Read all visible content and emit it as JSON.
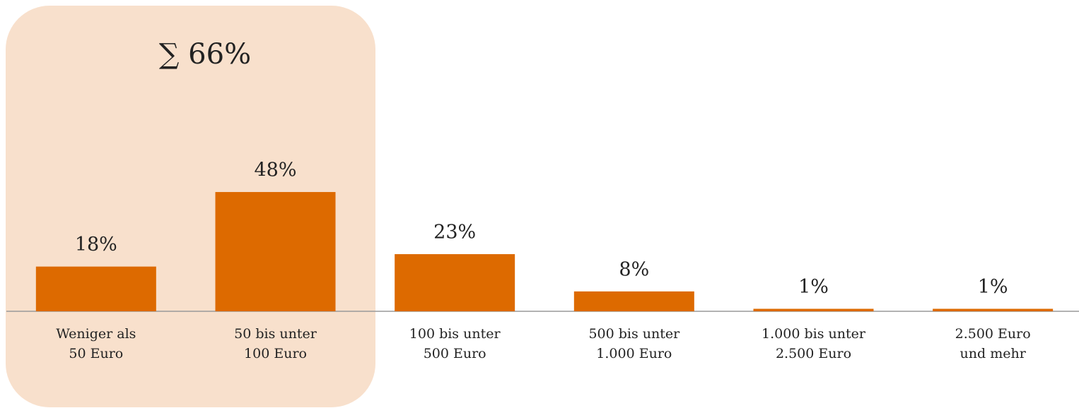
{
  "chart_data": {
    "type": "bar",
    "annotation": "∑ 66%",
    "categories": [
      "Weniger als\n50 Euro",
      "50 bis unter\n100 Euro",
      "100 bis unter\n500 Euro",
      "500 bis unter\n1.000 Euro",
      "1.000 bis unter\n2.500 Euro",
      "2.500 Euro\nund mehr"
    ],
    "values": [
      18,
      48,
      23,
      8,
      1,
      1
    ],
    "value_labels": [
      "18%",
      "48%",
      "23%",
      "8%",
      "1%",
      "1%"
    ],
    "color": "#dd6a00",
    "ylim": [
      0,
      100
    ]
  }
}
